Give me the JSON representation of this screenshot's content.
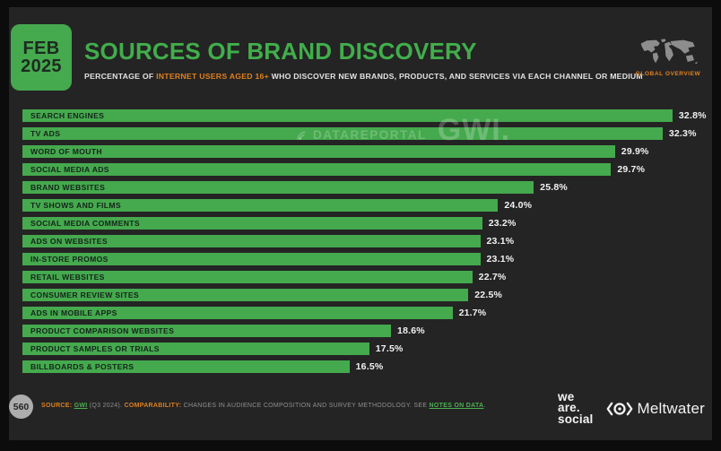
{
  "header": {
    "date_line1": "FEB",
    "date_line2": "2025",
    "title": "SOURCES OF BRAND DISCOVERY",
    "subtitle_prefix": "PERCENTAGE OF ",
    "subtitle_highlight": "INTERNET USERS AGED 16+",
    "subtitle_suffix": " WHO DISCOVER NEW BRANDS, PRODUCTS, AND SERVICES VIA EACH CHANNEL OR MEDIUM",
    "overview_label": "GLOBAL OVERVIEW"
  },
  "watermark": {
    "datareportal": "DATAREPORTAL",
    "gwi": "GWI."
  },
  "chart_data": {
    "type": "bar",
    "orientation": "horizontal",
    "title": "Sources of Brand Discovery",
    "categories": [
      "SEARCH ENGINES",
      "TV ADS",
      "WORD OF MOUTH",
      "SOCIAL MEDIA ADS",
      "BRAND WEBSITES",
      "TV SHOWS AND FILMS",
      "SOCIAL MEDIA COMMENTS",
      "ADS ON WEBSITES",
      "IN-STORE PROMOS",
      "RETAIL WEBSITES",
      "CONSUMER REVIEW SITES",
      "ADS IN MOBILE APPS",
      "PRODUCT COMPARISON WEBSITES",
      "PRODUCT SAMPLES OR TRIALS",
      "BILLBOARDS & POSTERS"
    ],
    "values": [
      32.8,
      32.3,
      29.9,
      29.7,
      25.8,
      24.0,
      23.2,
      23.1,
      23.1,
      22.7,
      22.5,
      21.7,
      18.6,
      17.5,
      16.5
    ],
    "value_suffix": "%",
    "xlim": [
      0,
      34.6
    ],
    "grid": false,
    "legend": "none",
    "bar_color": "#45a94e",
    "category_label_color": "#14251a",
    "value_label_color": "#f2f2f2"
  },
  "footer": {
    "page_number": "560",
    "source_label": "SOURCE:",
    "source_link": "GWI",
    "source_detail": "(Q3 2024).",
    "comparability_label": "COMPARABILITY:",
    "comparability_text": "CHANGES IN AUDIENCE COMPOSITION AND SURVEY METHODOLOGY. SEE",
    "notes_link": "NOTES ON DATA",
    "notes_period": ".",
    "logo_we": "we",
    "logo_are": "are.",
    "logo_social": "social",
    "meltwater_label": "Meltwater"
  },
  "colors": {
    "background": "#0c0c0c",
    "panel": "#242424",
    "green": "#45a94e",
    "orange": "#e0801f",
    "link_green": "#4caf50",
    "value_text": "#f2f2f2",
    "muted_text": "#8f8f8f"
  }
}
